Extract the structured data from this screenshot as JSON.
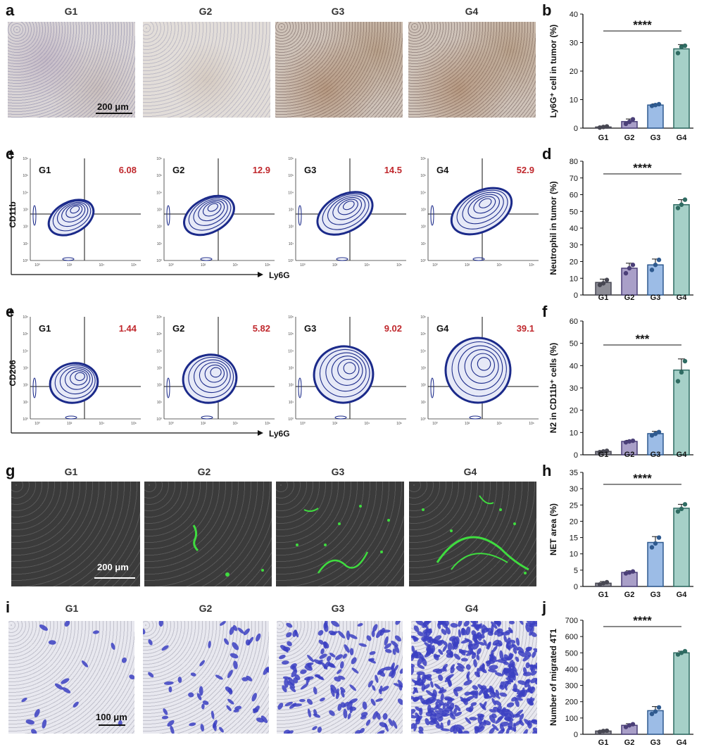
{
  "panels": {
    "a": "a",
    "b": "b",
    "c": "c",
    "d": "d",
    "e": "e",
    "f": "f",
    "g": "g",
    "h": "h",
    "i": "i",
    "j": "j"
  },
  "groups": [
    "G1",
    "G2",
    "G3",
    "G4"
  ],
  "scale_bars": {
    "a": "200 μm",
    "g": "200 μm",
    "i": "100 μm"
  },
  "flow_c": {
    "ylabel": "CD11b",
    "xlabel": "Ly6G",
    "values": [
      "6.08",
      "12.9",
      "14.5",
      "52.9"
    ]
  },
  "flow_e": {
    "ylabel": "CD206",
    "xlabel": "Ly6G",
    "values": [
      "1.44",
      "5.82",
      "9.02",
      "39.1"
    ]
  },
  "flow_axis": {
    "y_ticks": [
      "10⁶",
      "10⁵",
      "10⁴",
      "10³",
      "10²",
      "10¹",
      "10⁰"
    ],
    "x_ticks": [
      "10⁰",
      "10²",
      "10⁴",
      "10⁶"
    ]
  },
  "colors": {
    "G1": "#8d8d96",
    "G2": "#a99fc8",
    "G3": "#9cbce6",
    "G4": "#a6d0c8",
    "edge_G1": "#474752",
    "edge_G2": "#4b3f78",
    "edge_G3": "#2f5a8f",
    "edge_G4": "#2f6b62",
    "flow_value": "#c0282d",
    "contour": "#1b2a8a"
  },
  "chart_data": [
    {
      "id": "b",
      "type": "bar",
      "categories": [
        "G1",
        "G2",
        "G3",
        "G4"
      ],
      "values": [
        0.4,
        2.3,
        8.1,
        27.8
      ],
      "errors": [
        0.3,
        0.9,
        0.4,
        1.5
      ],
      "points": [
        [
          0.2,
          0.4,
          0.6
        ],
        [
          1.5,
          2.2,
          3.1
        ],
        [
          7.8,
          8.1,
          8.4
        ],
        [
          26.3,
          28.5,
          28.9
        ]
      ],
      "ylabel": "Ly6G⁺ cell in tumor (%)",
      "ylim": [
        0,
        40
      ],
      "yticks": [
        0,
        10,
        20,
        30,
        40
      ],
      "significance": "****"
    },
    {
      "id": "d",
      "type": "bar",
      "categories": [
        "G1",
        "G2",
        "G3",
        "G4"
      ],
      "values": [
        7.5,
        16,
        18,
        54
      ],
      "errors": [
        2,
        3,
        3.5,
        3
      ],
      "points": [
        [
          6,
          7,
          9
        ],
        [
          13,
          16,
          18
        ],
        [
          15,
          18,
          21
        ],
        [
          52,
          54,
          57
        ]
      ],
      "ylabel": "Neutrophil in tumor (%)",
      "ylim": [
        0,
        80
      ],
      "yticks": [
        0,
        10,
        20,
        30,
        40,
        50,
        60,
        70,
        80
      ],
      "significance": "****"
    },
    {
      "id": "f",
      "type": "bar",
      "categories": [
        "G1",
        "G2",
        "G3",
        "G4"
      ],
      "values": [
        1.5,
        6,
        9.5,
        38
      ],
      "errors": [
        0.4,
        0.5,
        1,
        5
      ],
      "points": [
        [
          1.2,
          1.5,
          1.8
        ],
        [
          5.6,
          6,
          6.3
        ],
        [
          8.7,
          9.4,
          10.2
        ],
        [
          33,
          37,
          42
        ]
      ],
      "ylabel": "N2 in CD11b⁺ cells (%)",
      "ylim": [
        0,
        60
      ],
      "yticks": [
        0,
        10,
        20,
        30,
        40,
        50,
        60
      ],
      "significance": "***"
    },
    {
      "id": "h",
      "type": "bar",
      "categories": [
        "G1",
        "G2",
        "G3",
        "G4"
      ],
      "values": [
        1,
        4.3,
        13.5,
        24
      ],
      "errors": [
        0.5,
        0.5,
        1.8,
        1.2
      ],
      "points": [
        [
          0.6,
          1,
          1.3
        ],
        [
          4,
          4.3,
          4.6
        ],
        [
          12,
          13.2,
          15
        ],
        [
          23,
          23.8,
          25.2
        ]
      ],
      "ylabel": "NET area (%)",
      "ylim": [
        0,
        35
      ],
      "yticks": [
        0,
        5,
        10,
        15,
        20,
        25,
        30,
        35
      ],
      "significance": "****"
    },
    {
      "id": "j",
      "type": "bar",
      "categories": [
        "G1",
        "G2",
        "G3",
        "G4"
      ],
      "values": [
        20,
        55,
        145,
        500
      ],
      "errors": [
        5,
        10,
        25,
        10
      ],
      "points": [
        [
          15,
          20,
          22
        ],
        [
          45,
          55,
          62
        ],
        [
          125,
          140,
          165
        ],
        [
          490,
          500,
          510
        ]
      ],
      "ylabel": "Number of migrated 4T1",
      "ylim": [
        0,
        700
      ],
      "yticks": [
        0,
        100,
        200,
        300,
        400,
        500,
        600,
        700
      ],
      "significance": "****"
    }
  ]
}
